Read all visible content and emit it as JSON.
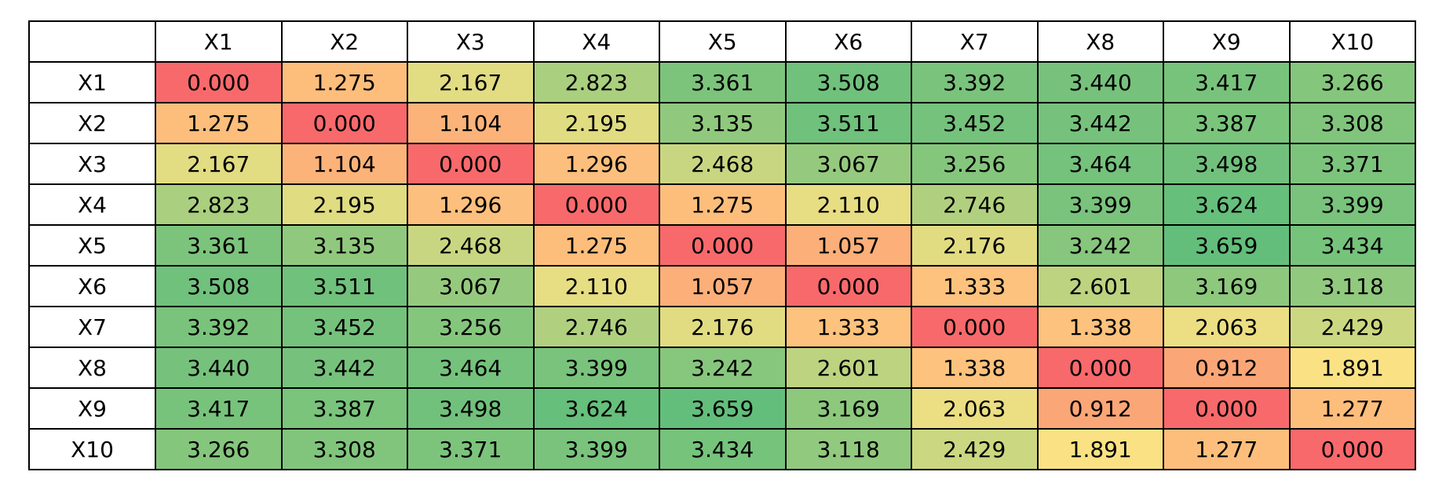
{
  "chart_data": {
    "type": "heatmap",
    "columns": [
      "X1",
      "X2",
      "X3",
      "X4",
      "X5",
      "X6",
      "X7",
      "X8",
      "X9",
      "X10"
    ],
    "rows": [
      "X1",
      "X2",
      "X3",
      "X4",
      "X5",
      "X6",
      "X7",
      "X8",
      "X9",
      "X10"
    ],
    "values": [
      [
        0.0,
        1.275,
        2.167,
        2.823,
        3.361,
        3.508,
        3.392,
        3.44,
        3.417,
        3.266
      ],
      [
        1.275,
        0.0,
        1.104,
        2.195,
        3.135,
        3.511,
        3.452,
        3.442,
        3.387,
        3.308
      ],
      [
        2.167,
        1.104,
        0.0,
        1.296,
        2.468,
        3.067,
        3.256,
        3.464,
        3.498,
        3.371
      ],
      [
        2.823,
        2.195,
        1.296,
        0.0,
        1.275,
        2.11,
        2.746,
        3.399,
        3.624,
        3.399
      ],
      [
        3.361,
        3.135,
        2.468,
        1.275,
        0.0,
        1.057,
        2.176,
        3.242,
        3.659,
        3.434
      ],
      [
        3.508,
        3.511,
        3.067,
        2.11,
        1.057,
        0.0,
        1.333,
        2.601,
        3.169,
        3.118
      ],
      [
        3.392,
        3.452,
        3.256,
        2.746,
        2.176,
        1.333,
        0.0,
        1.338,
        2.063,
        2.429
      ],
      [
        3.44,
        3.442,
        3.464,
        3.399,
        3.242,
        2.601,
        1.338,
        0.0,
        0.912,
        1.891
      ],
      [
        3.417,
        3.387,
        3.498,
        3.624,
        3.659,
        3.169,
        2.063,
        0.912,
        0.0,
        1.277
      ],
      [
        3.266,
        3.308,
        3.371,
        3.399,
        3.434,
        3.118,
        2.429,
        1.891,
        1.277,
        0.0
      ]
    ],
    "value_format": "0.000",
    "color_scale": {
      "low": "#F8696B",
      "mid": "#FFE384",
      "high": "#63BE7B"
    }
  }
}
